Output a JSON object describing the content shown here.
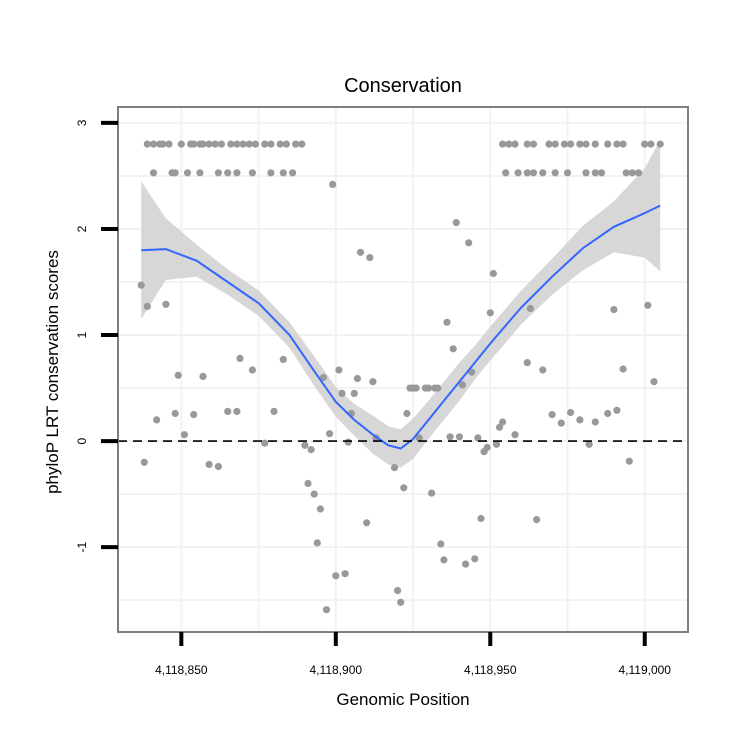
{
  "chart_data": {
    "type": "scatter",
    "title": "Conservation",
    "xlabel": "Genomic Position",
    "ylabel": "phyloP LRT conservation scores",
    "xlim": [
      4118829.5,
      4119014
    ],
    "ylim": [
      -1.8,
      3.15
    ],
    "x_ticks": [
      4118850,
      4118900,
      4118950,
      4119000
    ],
    "x_tick_labels": [
      "4,118,850",
      "4,118,900",
      "4,118,950",
      "4,119,000"
    ],
    "y_ticks": [
      -1,
      0,
      1,
      2,
      3
    ],
    "y_tick_labels": [
      "-1",
      "0",
      "1",
      "2",
      "3"
    ],
    "reference_line": {
      "y": 0,
      "style": "dashed"
    },
    "colors": {
      "points": "#999999",
      "smooth_line": "#3366ff",
      "ribbon": "#d3d3d3",
      "grid": "#f2f2f2",
      "panel_border": "#7f7f7f",
      "reference_line": "#000000"
    },
    "points": [
      [
        4118839,
        2.8
      ],
      [
        4118841,
        2.8
      ],
      [
        4118843,
        2.8
      ],
      [
        4118844,
        2.8
      ],
      [
        4118846,
        2.8
      ],
      [
        4118850,
        2.8
      ],
      [
        4118853,
        2.8
      ],
      [
        4118854,
        2.8
      ],
      [
        4118856,
        2.8
      ],
      [
        4118857,
        2.8
      ],
      [
        4118859,
        2.8
      ],
      [
        4118861,
        2.8
      ],
      [
        4118863,
        2.8
      ],
      [
        4118866,
        2.8
      ],
      [
        4118868,
        2.8
      ],
      [
        4118870,
        2.8
      ],
      [
        4118872,
        2.8
      ],
      [
        4118874,
        2.8
      ],
      [
        4118877,
        2.8
      ],
      [
        4118879,
        2.8
      ],
      [
        4118882,
        2.8
      ],
      [
        4118884,
        2.8
      ],
      [
        4118887,
        2.8
      ],
      [
        4118889,
        2.8
      ],
      [
        4118841,
        2.53
      ],
      [
        4118847,
        2.53
      ],
      [
        4118848,
        2.53
      ],
      [
        4118852,
        2.53
      ],
      [
        4118856,
        2.53
      ],
      [
        4118862,
        2.53
      ],
      [
        4118865,
        2.53
      ],
      [
        4118868,
        2.53
      ],
      [
        4118873,
        2.53
      ],
      [
        4118879,
        2.53
      ],
      [
        4118883,
        2.53
      ],
      [
        4118886,
        2.53
      ],
      [
        4118954,
        2.8
      ],
      [
        4118956,
        2.8
      ],
      [
        4118958,
        2.8
      ],
      [
        4118962,
        2.8
      ],
      [
        4118964,
        2.8
      ],
      [
        4118969,
        2.8
      ],
      [
        4118971,
        2.8
      ],
      [
        4118974,
        2.8
      ],
      [
        4118976,
        2.8
      ],
      [
        4118979,
        2.8
      ],
      [
        4118981,
        2.8
      ],
      [
        4118984,
        2.8
      ],
      [
        4118988,
        2.8
      ],
      [
        4118991,
        2.8
      ],
      [
        4118993,
        2.8
      ],
      [
        4119000,
        2.8
      ],
      [
        4119002,
        2.8
      ],
      [
        4119005,
        2.8
      ],
      [
        4118955,
        2.53
      ],
      [
        4118959,
        2.53
      ],
      [
        4118962,
        2.53
      ],
      [
        4118964,
        2.53
      ],
      [
        4118967,
        2.53
      ],
      [
        4118971,
        2.53
      ],
      [
        4118975,
        2.53
      ],
      [
        4118981,
        2.53
      ],
      [
        4118984,
        2.53
      ],
      [
        4118986,
        2.53
      ],
      [
        4118994,
        2.53
      ],
      [
        4118996,
        2.53
      ],
      [
        4118998,
        2.53
      ],
      [
        4118837,
        1.47
      ],
      [
        4118838,
        -0.2
      ],
      [
        4118839,
        1.27
      ],
      [
        4118842,
        0.2
      ],
      [
        4118845,
        1.29
      ],
      [
        4118848,
        0.26
      ],
      [
        4118849,
        0.62
      ],
      [
        4118851,
        0.06
      ],
      [
        4118854,
        0.25
      ],
      [
        4118857,
        0.61
      ],
      [
        4118859,
        -0.22
      ],
      [
        4118862,
        -0.24
      ],
      [
        4118865,
        0.28
      ],
      [
        4118868,
        0.28
      ],
      [
        4118869,
        0.78
      ],
      [
        4118873,
        0.67
      ],
      [
        4118877,
        -0.02
      ],
      [
        4118880,
        0.28
      ],
      [
        4118883,
        0.77
      ],
      [
        4118890,
        -0.04
      ],
      [
        4118891,
        -0.4
      ],
      [
        4118892,
        -0.08
      ],
      [
        4118893,
        -0.5
      ],
      [
        4118894,
        -0.96
      ],
      [
        4118895,
        -0.64
      ],
      [
        4118896,
        0.6
      ],
      [
        4118897,
        -1.59
      ],
      [
        4118898,
        0.07
      ],
      [
        4118899,
        2.42
      ],
      [
        4118900,
        -1.27
      ],
      [
        4118901,
        0.67
      ],
      [
        4118902,
        0.45
      ],
      [
        4118903,
        -1.25
      ],
      [
        4118904,
        -0.01
      ],
      [
        4118905,
        0.26
      ],
      [
        4118906,
        0.45
      ],
      [
        4118907,
        0.59
      ],
      [
        4118908,
        1.78
      ],
      [
        4118910,
        -0.77
      ],
      [
        4118911,
        1.73
      ],
      [
        4118912,
        0.56
      ],
      [
        4118913,
        0.03
      ],
      [
        4118919,
        -0.25
      ],
      [
        4118920,
        -1.41
      ],
      [
        4118921,
        -1.52
      ],
      [
        4118922,
        -0.44
      ],
      [
        4118923,
        0.26
      ],
      [
        4118924,
        0.5
      ],
      [
        4118925,
        0.5
      ],
      [
        4118926,
        0.5
      ],
      [
        4118927,
        0.03
      ],
      [
        4118929,
        0.5
      ],
      [
        4118930,
        0.5
      ],
      [
        4118931,
        -0.49
      ],
      [
        4118932,
        0.5
      ],
      [
        4118933,
        0.5
      ],
      [
        4118934,
        -0.97
      ],
      [
        4118935,
        -1.12
      ],
      [
        4118936,
        1.12
      ],
      [
        4118937,
        0.04
      ],
      [
        4118938,
        0.87
      ],
      [
        4118939,
        2.06
      ],
      [
        4118940,
        0.04
      ],
      [
        4118941,
        0.53
      ],
      [
        4118942,
        -1.16
      ],
      [
        4118943,
        1.87
      ],
      [
        4118944,
        0.65
      ],
      [
        4118945,
        -1.11
      ],
      [
        4118946,
        0.03
      ],
      [
        4118947,
        -0.73
      ],
      [
        4118948,
        -0.1
      ],
      [
        4118949,
        -0.06
      ],
      [
        4118950,
        1.21
      ],
      [
        4118951,
        1.58
      ],
      [
        4118952,
        -0.03
      ],
      [
        4118953,
        0.13
      ],
      [
        4118954,
        0.18
      ],
      [
        4118958,
        0.06
      ],
      [
        4118962,
        0.74
      ],
      [
        4118963,
        1.25
      ],
      [
        4118965,
        -0.74
      ],
      [
        4118967,
        0.67
      ],
      [
        4118970,
        0.25
      ],
      [
        4118973,
        0.17
      ],
      [
        4118976,
        0.27
      ],
      [
        4118979,
        0.2
      ],
      [
        4118982,
        -0.03
      ],
      [
        4118984,
        0.18
      ],
      [
        4118988,
        0.26
      ],
      [
        4118990,
        1.24
      ],
      [
        4118991,
        0.29
      ],
      [
        4118993,
        0.68
      ],
      [
        4118995,
        -0.19
      ],
      [
        4119001,
        1.28
      ],
      [
        4119003,
        0.56
      ]
    ],
    "smooth": {
      "x": [
        4118837,
        4118845,
        4118855,
        4118865,
        4118875,
        4118885,
        4118893,
        4118900,
        4118906,
        4118912,
        4118917,
        4118921,
        4118925,
        4118930,
        4118935,
        4118940,
        4118945,
        4118950,
        4118960,
        4118970,
        4118980,
        4118990,
        4119000,
        4119005
      ],
      "y": [
        1.8,
        1.81,
        1.7,
        1.5,
        1.3,
        1.0,
        0.66,
        0.37,
        0.2,
        0.06,
        -0.04,
        -0.07,
        0.02,
        0.2,
        0.38,
        0.56,
        0.74,
        0.92,
        1.26,
        1.55,
        1.82,
        2.02,
        2.15,
        2.22
      ],
      "lower": [
        1.15,
        1.52,
        1.55,
        1.38,
        1.18,
        0.88,
        0.52,
        0.23,
        0.05,
        -0.12,
        -0.22,
        -0.25,
        -0.17,
        0.02,
        0.2,
        0.38,
        0.58,
        0.76,
        1.1,
        1.38,
        1.61,
        1.78,
        1.73,
        1.6
      ],
      "upper": [
        2.45,
        2.1,
        1.85,
        1.62,
        1.42,
        1.12,
        0.8,
        0.51,
        0.35,
        0.24,
        0.14,
        0.11,
        0.21,
        0.38,
        0.56,
        0.74,
        0.9,
        1.08,
        1.42,
        1.72,
        2.03,
        2.26,
        2.57,
        2.84
      ]
    }
  }
}
